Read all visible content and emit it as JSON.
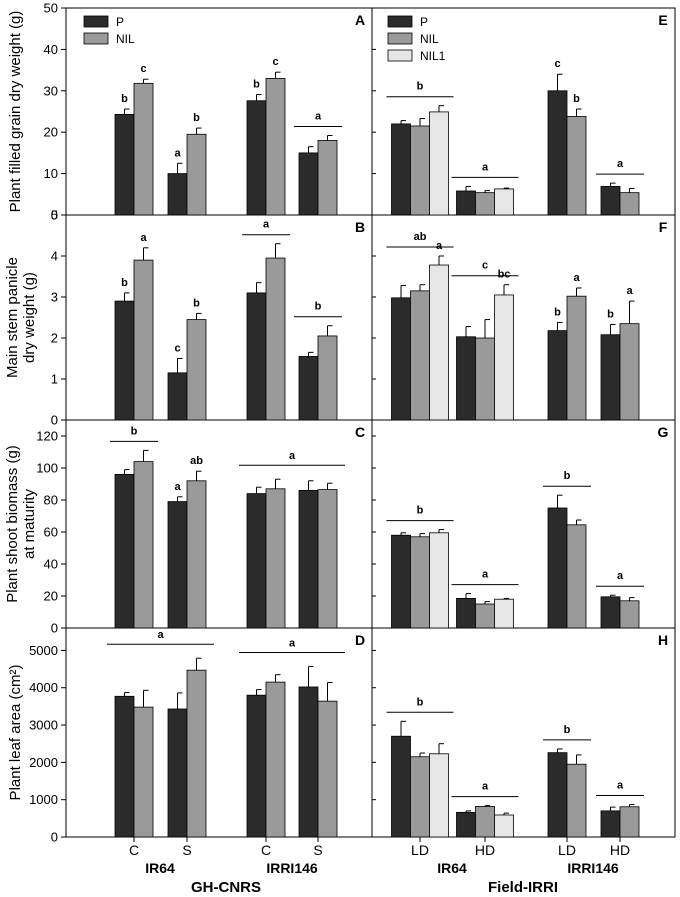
{
  "figure": {
    "x_environment_labels": [
      "GH-CNRS",
      "Field-IRRI"
    ],
    "genotype_labels": [
      "IR64",
      "IRRI146"
    ],
    "gh_condition_labels": [
      "C",
      "S",
      "C",
      "S"
    ],
    "field_condition_labels": [
      "LD",
      "HD",
      "LD",
      "HD"
    ]
  },
  "legend": {
    "left": [
      {
        "label": "P",
        "color": "#2b2b2b"
      },
      {
        "label": "NIL",
        "color": "#9a9a9a"
      }
    ],
    "right": [
      {
        "label": "P",
        "color": "#2b2b2b"
      },
      {
        "label": "NIL",
        "color": "#9a9a9a"
      },
      {
        "label": "NIL1",
        "color": "#e6e6e6"
      }
    ]
  },
  "chart_data": [
    {
      "panel": "A",
      "type": "bar",
      "environment": "GH-CNRS",
      "ylabel": "Plant filled grain dry weight (g)",
      "ylim": [
        0,
        50
      ],
      "yticks": [
        0,
        10,
        20,
        30,
        40,
        50
      ],
      "groups": [
        {
          "genotype": "IR64",
          "condition": "C",
          "bars": [
            {
              "series": "P",
              "value": 24.3,
              "error": 1.3,
              "label": "b"
            },
            {
              "series": "NIL",
              "value": 31.8,
              "error": 1.0,
              "label": "c"
            }
          ]
        },
        {
          "genotype": "IR64",
          "condition": "S",
          "bars": [
            {
              "series": "P",
              "value": 10.0,
              "error": 2.5,
              "label": "a"
            },
            {
              "series": "NIL",
              "value": 19.5,
              "error": 1.5,
              "label": "b"
            }
          ]
        },
        {
          "genotype": "IRRI146",
          "condition": "C",
          "bars": [
            {
              "series": "P",
              "value": 27.6,
              "error": 1.5,
              "label": "b"
            },
            {
              "series": "NIL",
              "value": 33.0,
              "error": 1.5,
              "label": "c"
            }
          ]
        },
        {
          "genotype": "IRRI146",
          "condition": "S",
          "bars": [
            {
              "series": "P",
              "value": 15.0,
              "error": 1.5
            },
            {
              "series": "NIL",
              "value": 18.0,
              "error": 1.2
            }
          ],
          "label": "a"
        }
      ]
    },
    {
      "panel": "B",
      "type": "bar",
      "environment": "GH-CNRS",
      "ylabel": "Main stem panicle dry weight (g)",
      "ylim": [
        0,
        5
      ],
      "yticks": [
        0,
        1,
        2,
        3,
        4,
        5
      ],
      "groups": [
        {
          "genotype": "IR64",
          "condition": "C",
          "bars": [
            {
              "series": "P",
              "value": 2.9,
              "error": 0.2,
              "label": "b"
            },
            {
              "series": "NIL",
              "value": 3.9,
              "error": 0.3,
              "label": "a"
            }
          ]
        },
        {
          "genotype": "IR64",
          "condition": "S",
          "bars": [
            {
              "series": "P",
              "value": 1.15,
              "error": 0.35,
              "label": "c"
            },
            {
              "series": "NIL",
              "value": 2.45,
              "error": 0.15,
              "label": "b"
            }
          ]
        },
        {
          "genotype": "IRRI146",
          "condition": "C",
          "bars": [
            {
              "series": "P",
              "value": 3.1,
              "error": 0.25
            },
            {
              "series": "NIL",
              "value": 3.95,
              "error": 0.35
            }
          ],
          "label": "a"
        },
        {
          "genotype": "IRRI146",
          "condition": "S",
          "bars": [
            {
              "series": "P",
              "value": 1.55,
              "error": 0.1
            },
            {
              "series": "NIL",
              "value": 2.05,
              "error": 0.25
            }
          ],
          "label": "b"
        }
      ]
    },
    {
      "panel": "C",
      "type": "bar",
      "environment": "GH-CNRS",
      "ylabel": "Plant shoot biomass (g) at maturity",
      "ylim": [
        0,
        130
      ],
      "yticks": [
        0,
        20,
        40,
        60,
        80,
        100,
        120
      ],
      "groups": [
        {
          "genotype": "IR64",
          "condition": "C",
          "bars": [
            {
              "series": "P",
              "value": 96,
              "error": 3
            },
            {
              "series": "NIL",
              "value": 104,
              "error": 7
            }
          ],
          "label": "b"
        },
        {
          "genotype": "IR64",
          "condition": "S",
          "bars": [
            {
              "series": "P",
              "value": 79,
              "error": 3,
              "label": "a"
            },
            {
              "series": "NIL",
              "value": 92,
              "error": 6,
              "label": "ab"
            }
          ]
        },
        {
          "genotype": "IRRI146",
          "condition": "C",
          "bars": [
            {
              "series": "P",
              "value": 84,
              "error": 4
            },
            {
              "series": "NIL",
              "value": 87,
              "error": 6
            }
          ]
        },
        {
          "genotype": "IRRI146",
          "condition": "S",
          "bars": [
            {
              "series": "P",
              "value": 86,
              "error": 6
            },
            {
              "series": "NIL",
              "value": 86.5,
              "error": 4
            }
          ]
        }
      ],
      "span_labels": [
        {
          "from_group": 2,
          "to_group": 3,
          "label": "a"
        }
      ]
    },
    {
      "panel": "D",
      "type": "bar",
      "environment": "GH-CNRS",
      "ylabel": "Plant leaf area (cm²)",
      "ylim": [
        0,
        5600
      ],
      "yticks": [
        0,
        1000,
        2000,
        3000,
        4000,
        5000
      ],
      "groups": [
        {
          "genotype": "IR64",
          "condition": "C",
          "bars": [
            {
              "series": "P",
              "value": 3770,
              "error": 100
            },
            {
              "series": "NIL",
              "value": 3480,
              "error": 450
            }
          ]
        },
        {
          "genotype": "IR64",
          "condition": "S",
          "bars": [
            {
              "series": "P",
              "value": 3430,
              "error": 430
            },
            {
              "series": "NIL",
              "value": 4470,
              "error": 320
            }
          ]
        },
        {
          "genotype": "IRRI146",
          "condition": "C",
          "bars": [
            {
              "series": "P",
              "value": 3800,
              "error": 150
            },
            {
              "series": "NIL",
              "value": 4150,
              "error": 200
            }
          ]
        },
        {
          "genotype": "IRRI146",
          "condition": "S",
          "bars": [
            {
              "series": "P",
              "value": 4020,
              "error": 550
            },
            {
              "series": "NIL",
              "value": 3640,
              "error": 500
            }
          ]
        }
      ],
      "span_labels": [
        {
          "from_group": 0,
          "to_group": 1,
          "label": "a"
        },
        {
          "from_group": 2,
          "to_group": 3,
          "label": "a"
        }
      ]
    },
    {
      "panel": "E",
      "type": "bar",
      "environment": "Field-IRRI",
      "ylabel": "Plant filled grain dry weight (g)",
      "ylim": [
        0,
        50
      ],
      "yticks": [
        0,
        10,
        20,
        30,
        40,
        50
      ],
      "groups": [
        {
          "genotype": "IR64",
          "condition": "LD",
          "bars": [
            {
              "series": "P",
              "value": 22.0,
              "error": 0.8
            },
            {
              "series": "NIL",
              "value": 21.5,
              "error": 1.8
            },
            {
              "series": "NIL1",
              "value": 24.9,
              "error": 1.5
            }
          ],
          "label": "b"
        },
        {
          "genotype": "IR64",
          "condition": "HD",
          "bars": [
            {
              "series": "P",
              "value": 5.8,
              "error": 1.1
            },
            {
              "series": "NIL",
              "value": 5.4,
              "error": 0.5
            },
            {
              "series": "NIL1",
              "value": 6.3,
              "error": 0.2
            }
          ],
          "label": "a"
        },
        {
          "genotype": "IRRI146",
          "condition": "LD",
          "bars": [
            {
              "series": "P",
              "value": 30.0,
              "error": 4.0,
              "label": "c"
            },
            {
              "series": "NIL",
              "value": 23.8,
              "error": 1.8,
              "label": "b"
            }
          ]
        },
        {
          "genotype": "IRRI146",
          "condition": "HD",
          "bars": [
            {
              "series": "P",
              "value": 6.9,
              "error": 0.8
            },
            {
              "series": "NIL",
              "value": 5.4,
              "error": 1.0
            }
          ],
          "label": "a"
        }
      ]
    },
    {
      "panel": "F",
      "type": "bar",
      "environment": "Field-IRRI",
      "ylabel": "Main stem panicle dry weight (g)",
      "ylim": [
        0,
        5
      ],
      "yticks": [
        0,
        1,
        2,
        3,
        4,
        5
      ],
      "groups": [
        {
          "genotype": "IR64",
          "condition": "LD",
          "bars": [
            {
              "series": "P",
              "value": 2.98,
              "error": 0.3
            },
            {
              "series": "NIL",
              "value": 3.15,
              "error": 0.15
            },
            {
              "series": "NIL1",
              "value": 3.78,
              "error": 0.22,
              "label": "a"
            }
          ],
          "label": "ab"
        },
        {
          "genotype": "IR64",
          "condition": "HD",
          "bars": [
            {
              "series": "P",
              "value": 2.03,
              "error": 0.25
            },
            {
              "series": "NIL",
              "value": 2.0,
              "error": 0.45
            },
            {
              "series": "NIL1",
              "value": 3.05,
              "error": 0.25,
              "label": "bc"
            }
          ],
          "label": "c"
        },
        {
          "genotype": "IRRI146",
          "condition": "LD",
          "bars": [
            {
              "series": "P",
              "value": 2.18,
              "error": 0.2,
              "label": "b"
            },
            {
              "series": "NIL",
              "value": 3.02,
              "error": 0.2,
              "label": "a"
            }
          ]
        },
        {
          "genotype": "IRRI146",
          "condition": "HD",
          "bars": [
            {
              "series": "P",
              "value": 2.08,
              "error": 0.25,
              "label": "b"
            },
            {
              "series": "NIL",
              "value": 2.35,
              "error": 0.55,
              "label": "a"
            }
          ]
        }
      ]
    },
    {
      "panel": "G",
      "type": "bar",
      "environment": "Field-IRRI",
      "ylabel": "Plant shoot biomass (g) at maturity",
      "ylim": [
        0,
        130
      ],
      "yticks": [
        0,
        20,
        40,
        60,
        80,
        100,
        120
      ],
      "groups": [
        {
          "genotype": "IR64",
          "condition": "LD",
          "bars": [
            {
              "series": "P",
              "value": 58,
              "error": 1.5
            },
            {
              "series": "NIL",
              "value": 57,
              "error": 2
            },
            {
              "series": "NIL1",
              "value": 59.5,
              "error": 2
            }
          ],
          "label": "b"
        },
        {
          "genotype": "IR64",
          "condition": "HD",
          "bars": [
            {
              "series": "P",
              "value": 18.5,
              "error": 3
            },
            {
              "series": "NIL",
              "value": 15,
              "error": 1.5
            },
            {
              "series": "NIL1",
              "value": 18,
              "error": 0.5
            }
          ],
          "label": "a"
        },
        {
          "genotype": "IRRI146",
          "condition": "LD",
          "bars": [
            {
              "series": "P",
              "value": 75,
              "error": 8
            },
            {
              "series": "NIL",
              "value": 64.5,
              "error": 3
            }
          ],
          "label": "b"
        },
        {
          "genotype": "IRRI146",
          "condition": "HD",
          "bars": [
            {
              "series": "P",
              "value": 19.5,
              "error": 1
            },
            {
              "series": "NIL",
              "value": 17,
              "error": 2
            }
          ],
          "label": "a"
        }
      ]
    },
    {
      "panel": "H",
      "type": "bar",
      "environment": "Field-IRRI",
      "ylabel": "Plant leaf area (cm²)",
      "ylim": [
        0,
        5600
      ],
      "yticks": [
        0,
        1000,
        2000,
        3000,
        4000,
        5000
      ],
      "groups": [
        {
          "genotype": "IR64",
          "condition": "LD",
          "bars": [
            {
              "series": "P",
              "value": 2700,
              "error": 400
            },
            {
              "series": "NIL",
              "value": 2150,
              "error": 100
            },
            {
              "series": "NIL1",
              "value": 2230,
              "error": 270
            }
          ],
          "label": "b"
        },
        {
          "genotype": "IR64",
          "condition": "HD",
          "bars": [
            {
              "series": "P",
              "value": 660,
              "error": 40
            },
            {
              "series": "NIL",
              "value": 820,
              "error": 20
            },
            {
              "series": "NIL1",
              "value": 590,
              "error": 50
            }
          ],
          "label": "a"
        },
        {
          "genotype": "IRRI146",
          "condition": "LD",
          "bars": [
            {
              "series": "P",
              "value": 2260,
              "error": 100
            },
            {
              "series": "NIL",
              "value": 1950,
              "error": 250
            }
          ],
          "label": "b"
        },
        {
          "genotype": "IRRI146",
          "condition": "HD",
          "bars": [
            {
              "series": "P",
              "value": 700,
              "error": 100
            },
            {
              "series": "NIL",
              "value": 810,
              "error": 60
            }
          ],
          "label": "a"
        }
      ]
    }
  ]
}
